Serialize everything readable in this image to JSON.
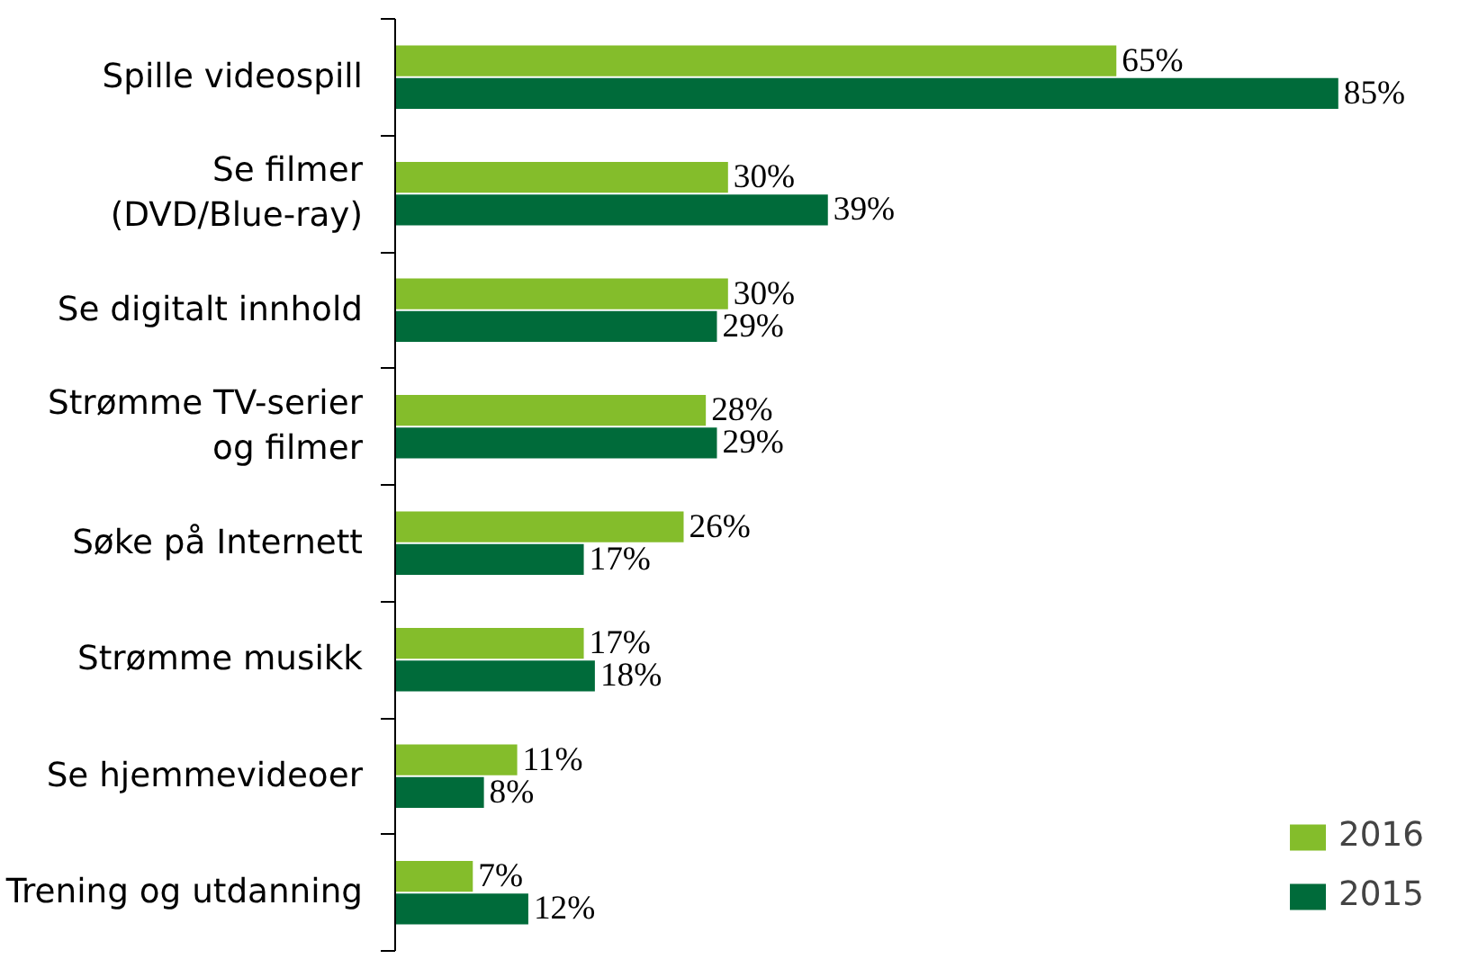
{
  "chart_data": {
    "type": "bar",
    "orientation": "horizontal",
    "categories": [
      "Spille videospill",
      "Se filmer\n(DVD/Blue-ray)",
      "Se digitalt innhold",
      "Strømme TV-serier\nog filmer",
      "Søke på Internett",
      "Strømme musikk",
      "Se hjemmevideoer",
      "Trening og utdanning"
    ],
    "series": [
      {
        "name": "2016",
        "color": "#84bd2b",
        "values": [
          65,
          30,
          30,
          28,
          26,
          17,
          11,
          7
        ],
        "value_labels": [
          "65%",
          "30%",
          "30%",
          "28%",
          "26%",
          "17%",
          "11%",
          "7%"
        ]
      },
      {
        "name": "2015",
        "color": "#006b3a",
        "values": [
          85,
          39,
          29,
          29,
          17,
          18,
          8,
          12
        ],
        "value_labels": [
          "85%",
          "39%",
          "29%",
          "29%",
          "17%",
          "18%",
          "8%",
          "12%"
        ]
      }
    ],
    "grid": false,
    "legend": "bottom right"
  }
}
